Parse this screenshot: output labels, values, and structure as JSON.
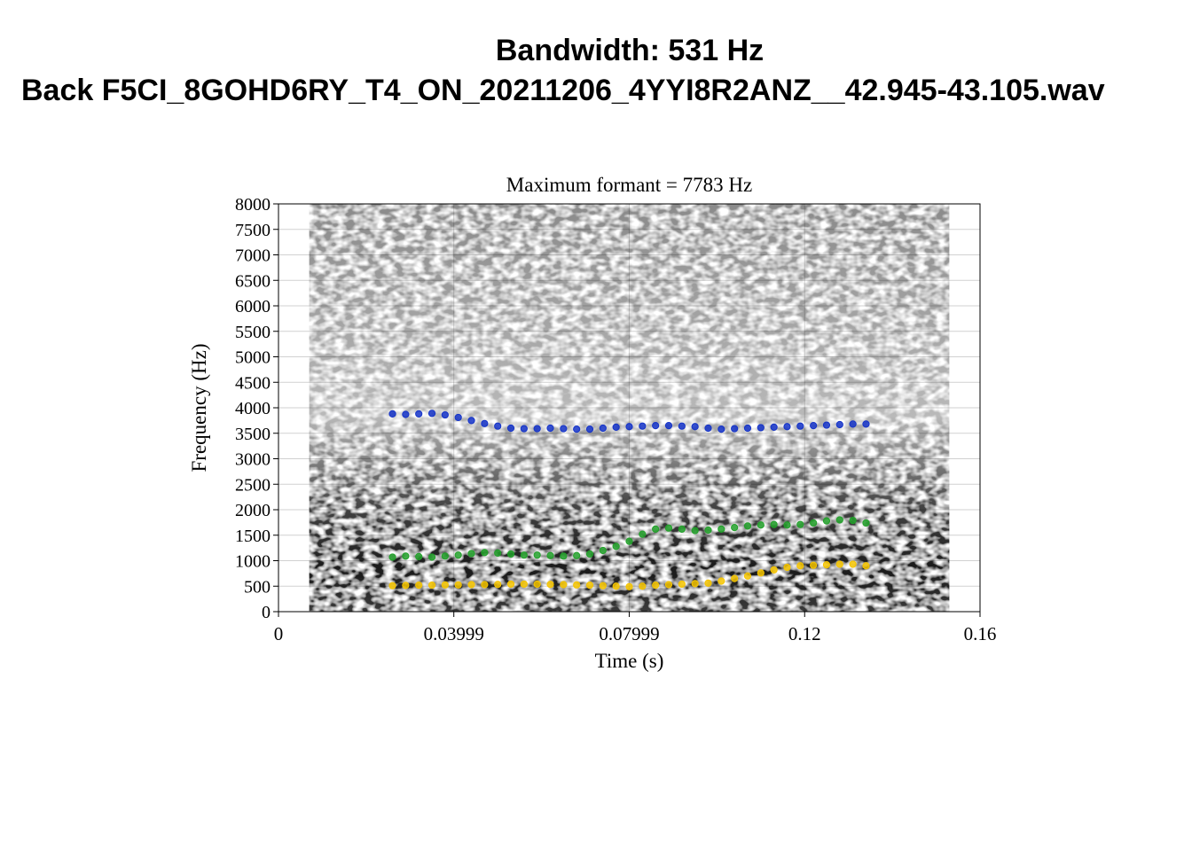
{
  "header": {
    "title_line1": "Bandwidth: 531 Hz",
    "title_line2": "Back F5CI_8GOHD6RY_T4_ON_20211206_4YYI8R2ANZ__42.945-43.105.wav"
  },
  "chart_data": {
    "type": "scatter",
    "title": "Maximum formant  =  7783 Hz",
    "xlabel": "Time (s)",
    "ylabel": "Frequency (Hz)",
    "xlim": [
      0,
      0.16
    ],
    "ylim": [
      0,
      8000
    ],
    "x_ticks": [
      0,
      0.03999,
      0.07999,
      0.12,
      0.16
    ],
    "x_tick_labels": [
      "0",
      "0.03999",
      "0.07999",
      "0.12",
      "0.16"
    ],
    "y_ticks": [
      0,
      500,
      1000,
      1500,
      2000,
      2500,
      3000,
      3500,
      4000,
      4500,
      5000,
      5500,
      6000,
      6500,
      7000,
      7500,
      8000
    ],
    "y_tick_labels": [
      "0",
      "500",
      "1000",
      "1500",
      "2000",
      "2500",
      "3000",
      "3500",
      "4000",
      "4500",
      "5000",
      "5500",
      "6000",
      "6500",
      "7000",
      "7500",
      "8000"
    ],
    "background": "grayscale spectrogram",
    "spectrogram_time_range": [
      0.007,
      0.153
    ],
    "grid": true,
    "series": [
      {
        "color": "#f5c400",
        "x": [
          0.026,
          0.029,
          0.032,
          0.035,
          0.038,
          0.041,
          0.044,
          0.047,
          0.05,
          0.053,
          0.056,
          0.059,
          0.062,
          0.065,
          0.068,
          0.071,
          0.074,
          0.077,
          0.08,
          0.083,
          0.086,
          0.089,
          0.092,
          0.095,
          0.098,
          0.101,
          0.104,
          0.107,
          0.11,
          0.113,
          0.116,
          0.119,
          0.122,
          0.125,
          0.128,
          0.131,
          0.134
        ],
        "y": [
          510,
          515,
          520,
          520,
          525,
          525,
          530,
          530,
          535,
          540,
          540,
          540,
          535,
          530,
          525,
          520,
          510,
          500,
          490,
          500,
          520,
          530,
          540,
          550,
          560,
          600,
          650,
          700,
          760,
          820,
          870,
          900,
          910,
          920,
          930,
          930,
          900
        ]
      },
      {
        "color": "#22a02a",
        "x": [
          0.026,
          0.029,
          0.032,
          0.035,
          0.038,
          0.041,
          0.044,
          0.047,
          0.05,
          0.053,
          0.056,
          0.059,
          0.062,
          0.065,
          0.068,
          0.071,
          0.074,
          0.077,
          0.08,
          0.083,
          0.086,
          0.089,
          0.092,
          0.095,
          0.098,
          0.101,
          0.104,
          0.107,
          0.11,
          0.113,
          0.116,
          0.119,
          0.122,
          0.125,
          0.128,
          0.131,
          0.134
        ],
        "y": [
          1070,
          1090,
          1080,
          1070,
          1090,
          1110,
          1140,
          1160,
          1150,
          1130,
          1110,
          1110,
          1100,
          1090,
          1100,
          1130,
          1200,
          1280,
          1380,
          1520,
          1620,
          1640,
          1620,
          1590,
          1600,
          1620,
          1650,
          1680,
          1700,
          1710,
          1700,
          1710,
          1740,
          1780,
          1800,
          1790,
          1740
        ]
      },
      {
        "color": "#1433c8",
        "x": [
          0.026,
          0.029,
          0.032,
          0.035,
          0.038,
          0.041,
          0.044,
          0.047,
          0.05,
          0.053,
          0.056,
          0.059,
          0.062,
          0.065,
          0.068,
          0.071,
          0.074,
          0.077,
          0.08,
          0.083,
          0.086,
          0.089,
          0.092,
          0.095,
          0.098,
          0.101,
          0.104,
          0.107,
          0.11,
          0.113,
          0.116,
          0.119,
          0.122,
          0.125,
          0.128,
          0.131,
          0.134
        ],
        "y": [
          3880,
          3870,
          3880,
          3890,
          3860,
          3810,
          3750,
          3690,
          3640,
          3600,
          3590,
          3590,
          3600,
          3590,
          3580,
          3580,
          3600,
          3620,
          3630,
          3640,
          3650,
          3650,
          3640,
          3630,
          3600,
          3580,
          3590,
          3600,
          3610,
          3620,
          3630,
          3640,
          3650,
          3660,
          3670,
          3680,
          3680
        ]
      }
    ]
  }
}
